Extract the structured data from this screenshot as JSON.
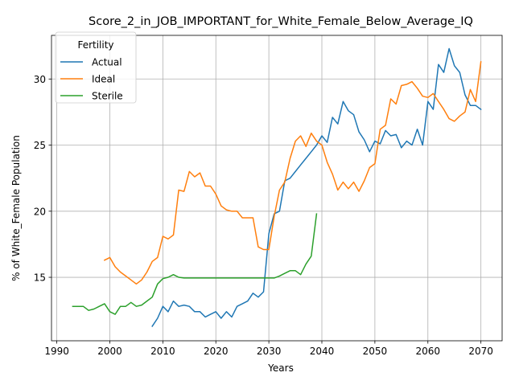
{
  "chart_data": {
    "type": "line",
    "title": "Score_2_in_JOB_IMPORTANT_for_White_Female_Below_Average_IQ",
    "xlabel": "Years",
    "ylabel": "% of White_Female Population",
    "xlim": [
      1989,
      2074
    ],
    "ylim": [
      10.2,
      33.3
    ],
    "xticks": [
      1990,
      2000,
      2010,
      2020,
      2030,
      2040,
      2050,
      2060,
      2070
    ],
    "yticks": [
      15,
      20,
      25,
      30
    ],
    "grid": true,
    "legend": {
      "title": "Fertility",
      "placement": "top-left"
    },
    "series": [
      {
        "name": "Actual",
        "color": "#1f77b4",
        "x": [
          2008,
          2009,
          2010,
          2011,
          2012,
          2013,
          2014,
          2015,
          2016,
          2017,
          2018,
          2019,
          2020,
          2021,
          2022,
          2023,
          2024,
          2025,
          2026,
          2027,
          2028,
          2029,
          2030,
          2031,
          2032,
          2033,
          2034,
          2035,
          2036,
          2037,
          2038,
          2039,
          2040,
          2041,
          2042,
          2043,
          2044,
          2045,
          2046,
          2047,
          2048,
          2049,
          2050,
          2051,
          2052,
          2053,
          2054,
          2055,
          2056,
          2057,
          2058,
          2059,
          2060,
          2061,
          2062,
          2063,
          2064,
          2065,
          2066,
          2067,
          2068,
          2069,
          2070
        ],
        "y": [
          11.3,
          11.9,
          12.8,
          12.4,
          13.2,
          12.8,
          12.9,
          12.8,
          12.4,
          12.4,
          12.0,
          12.2,
          12.4,
          11.9,
          12.4,
          12.0,
          12.8,
          13.0,
          13.2,
          13.8,
          13.5,
          13.9,
          18.3,
          19.8,
          20.0,
          22.3,
          22.5,
          23.0,
          23.5,
          24.0,
          24.5,
          25.0,
          25.7,
          25.2,
          27.1,
          26.6,
          28.3,
          27.6,
          27.3,
          26.0,
          25.4,
          24.5,
          25.3,
          25.1,
          26.1,
          25.7,
          25.8,
          24.8,
          25.3,
          25.0,
          26.2,
          25.0,
          28.3,
          27.7,
          31.1,
          30.5,
          32.3,
          31.0,
          30.5,
          28.8,
          28.0,
          28.0,
          27.7
        ]
      },
      {
        "name": "Ideal",
        "color": "#ff7f0e",
        "x": [
          1999,
          2000,
          2001,
          2002,
          2003,
          2004,
          2005,
          2006,
          2007,
          2008,
          2009,
          2010,
          2011,
          2012,
          2013,
          2014,
          2015,
          2016,
          2017,
          2018,
          2019,
          2020,
          2021,
          2022,
          2023,
          2024,
          2025,
          2026,
          2027,
          2028,
          2029,
          2030,
          2031,
          2032,
          2033,
          2034,
          2035,
          2036,
          2037,
          2038,
          2039,
          2040,
          2041,
          2042,
          2043,
          2044,
          2045,
          2046,
          2047,
          2048,
          2049,
          2050,
          2051,
          2052,
          2053,
          2054,
          2055,
          2056,
          2057,
          2058,
          2059,
          2060,
          2061,
          2062,
          2063,
          2064,
          2065,
          2066,
          2067,
          2068,
          2069,
          2070
        ],
        "y": [
          16.3,
          16.5,
          15.8,
          15.4,
          15.1,
          14.8,
          14.5,
          14.8,
          15.4,
          16.2,
          16.5,
          18.1,
          17.9,
          18.2,
          21.6,
          21.5,
          23.0,
          22.6,
          22.9,
          21.9,
          21.9,
          21.3,
          20.4,
          20.1,
          20.0,
          20.0,
          19.5,
          19.5,
          19.5,
          17.3,
          17.1,
          17.1,
          19.6,
          21.6,
          22.2,
          24.0,
          25.3,
          25.7,
          24.9,
          25.9,
          25.3,
          25.0,
          23.7,
          22.8,
          21.6,
          22.2,
          21.7,
          22.2,
          21.5,
          22.3,
          23.3,
          23.6,
          26.2,
          26.5,
          28.5,
          28.1,
          29.5,
          29.6,
          29.8,
          29.3,
          28.7,
          28.6,
          28.9,
          28.3,
          27.7,
          27.0,
          26.8,
          27.2,
          27.5,
          29.2,
          28.3,
          31.3
        ]
      },
      {
        "name": "Sterile",
        "color": "#2ca02c",
        "x": [
          1993,
          1994,
          1995,
          1996,
          1997,
          1998,
          1999,
          2000,
          2001,
          2002,
          2003,
          2004,
          2005,
          2006,
          2007,
          2008,
          2009,
          2010,
          2011,
          2012,
          2013,
          2014,
          2015,
          2016,
          2017,
          2018,
          2019,
          2020,
          2021,
          2022,
          2023,
          2024,
          2025,
          2026,
          2027,
          2028,
          2029,
          2030,
          2031,
          2032,
          2033,
          2034,
          2035,
          2036,
          2037,
          2038,
          2039
        ],
        "y": [
          12.8,
          12.8,
          12.8,
          12.5,
          12.6,
          12.8,
          13.0,
          12.4,
          12.2,
          12.8,
          12.8,
          13.1,
          12.8,
          12.9,
          13.2,
          13.5,
          14.5,
          14.9,
          15.0,
          15.2,
          15.0,
          14.95,
          14.95,
          14.95,
          14.95,
          14.95,
          14.95,
          14.95,
          14.95,
          14.95,
          14.95,
          14.95,
          14.95,
          14.95,
          14.95,
          14.95,
          14.95,
          14.95,
          14.95,
          15.1,
          15.3,
          15.5,
          15.5,
          15.2,
          16.0,
          16.6,
          19.8
        ]
      }
    ]
  }
}
